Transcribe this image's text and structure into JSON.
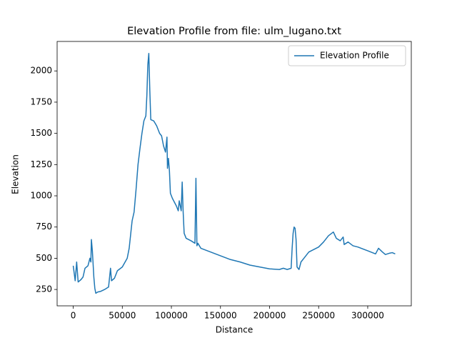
{
  "chart_data": {
    "type": "line",
    "title": "Elevation Profile from file: ulm_lugano.txt",
    "x_label": "Distance",
    "y_label": "Elevation",
    "x": [
      0,
      2000,
      3500,
      5000,
      8000,
      10000,
      12000,
      15000,
      17000,
      18000,
      18500,
      19500,
      21000,
      22000,
      23000,
      25000,
      28000,
      32000,
      36000,
      38000,
      39000,
      42000,
      45000,
      50000,
      55000,
      57000,
      60000,
      62000,
      64000,
      66000,
      68000,
      70000,
      72000,
      74000,
      75000,
      76000,
      77000,
      78000,
      79000,
      82000,
      85000,
      88000,
      90000,
      92000,
      94000,
      95500,
      96000,
      97000,
      98000,
      99000,
      101000,
      105000,
      107000,
      108000,
      110000,
      111000,
      112000,
      113000,
      115000,
      120000,
      124000,
      125000,
      126000,
      127000,
      130000,
      140000,
      150000,
      160000,
      170000,
      180000,
      190000,
      200000,
      210000,
      214000,
      218000,
      222000,
      223000,
      224000,
      225000,
      226000,
      227000,
      228000,
      230000,
      232000,
      236000,
      240000,
      245000,
      250000,
      255000,
      260000,
      265000,
      268000,
      272000,
      275000,
      276000,
      280000,
      285000,
      290000,
      300000,
      308000,
      311000,
      315000,
      318000,
      322000,
      325000,
      328000
    ],
    "series": [
      {
        "name": "Elevation Profile",
        "color": "#1f77b4",
        "values": [
          440,
          320,
          470,
          310,
          330,
          350,
          420,
          440,
          500,
          470,
          650,
          560,
          350,
          260,
          220,
          230,
          235,
          250,
          270,
          420,
          320,
          340,
          400,
          430,
          500,
          580,
          800,
          870,
          1050,
          1250,
          1380,
          1500,
          1600,
          1640,
          1800,
          2050,
          2140,
          1850,
          1610,
          1600,
          1560,
          1500,
          1480,
          1400,
          1350,
          1470,
          1220,
          1300,
          1200,
          1020,
          980,
          920,
          880,
          960,
          880,
          1110,
          870,
          700,
          660,
          640,
          620,
          1140,
          600,
          620,
          580,
          550,
          520,
          490,
          470,
          445,
          430,
          415,
          410,
          420,
          410,
          420,
          580,
          700,
          750,
          740,
          650,
          430,
          410,
          470,
          510,
          550,
          570,
          590,
          630,
          680,
          710,
          660,
          640,
          670,
          610,
          630,
          600,
          590,
          560,
          535,
          580,
          550,
          530,
          540,
          545,
          535
        ]
      }
    ],
    "xlim": [
      -16400,
      344400
    ],
    "ylim": [
      119,
      2236
    ],
    "xticks": [
      0,
      50000,
      100000,
      150000,
      200000,
      250000,
      300000
    ],
    "yticks": [
      250,
      500,
      750,
      1000,
      1250,
      1500,
      1750,
      2000
    ],
    "grid": false,
    "legend": "upper right"
  }
}
